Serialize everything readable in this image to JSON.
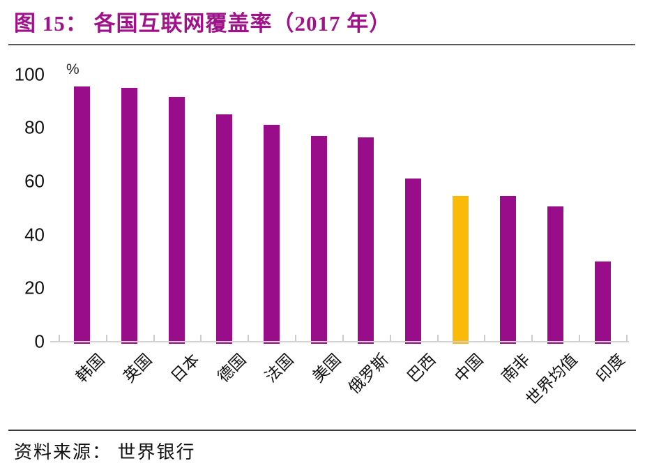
{
  "header": {
    "title": "图 15：  各国互联网覆盖率（2017 年）"
  },
  "chart_data": {
    "type": "bar",
    "title": "各国互联网覆盖率（2017 年）",
    "unit_label": "%",
    "categories": [
      "韩国",
      "英国",
      "日本",
      "德国",
      "法国",
      "美国",
      "俄罗斯",
      "巴西",
      "中国",
      "南非",
      "世界均值",
      "印度"
    ],
    "values": [
      95.5,
      95,
      91.5,
      85,
      81,
      77,
      76.5,
      61,
      54.5,
      54.5,
      50.5,
      30
    ],
    "highlight_category": "中国",
    "highlight_index": 8,
    "yticks": [
      0,
      20,
      40,
      60,
      80,
      100
    ],
    "ylim": [
      0,
      100
    ],
    "grid": false,
    "legend": "none",
    "colors": {
      "bar": "#990D8A",
      "highlight": "#FBB908",
      "axis": "#D4D0D0",
      "tick": "#CFCBCB"
    }
  },
  "source": {
    "text": "资料来源：  世界银行"
  },
  "colors": {
    "title": "#A0128A",
    "divider_top": "#595959",
    "divider_bottom": "#3B3B3B"
  }
}
